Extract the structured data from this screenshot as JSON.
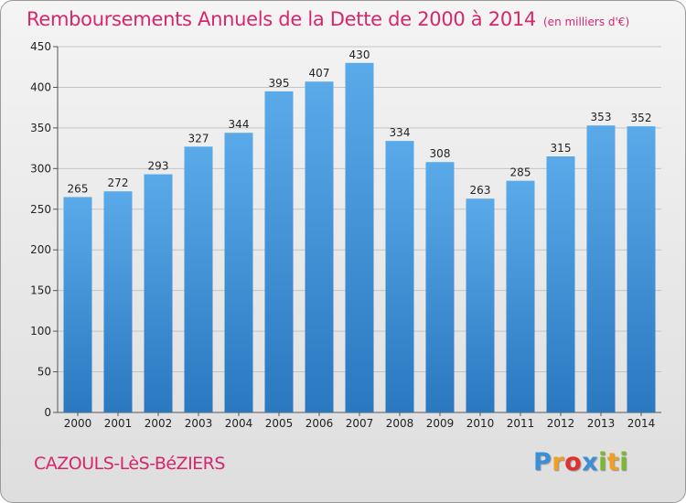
{
  "chart_data": {
    "type": "bar",
    "title": "Remboursements Annuels de la Dette de 2000 à 2014",
    "subtitle": "(en milliers d'€)",
    "categories": [
      "2000",
      "2001",
      "2002",
      "2003",
      "2004",
      "2005",
      "2006",
      "2007",
      "2008",
      "2009",
      "2010",
      "2011",
      "2012",
      "2013",
      "2014"
    ],
    "values": [
      265,
      272,
      293,
      327,
      344,
      395,
      407,
      430,
      334,
      308,
      263,
      285,
      315,
      353,
      352
    ],
    "xlabel": "",
    "ylabel": "",
    "ylim": [
      0,
      450
    ],
    "yticks": [
      0,
      50,
      100,
      150,
      200,
      250,
      300,
      350,
      400,
      450
    ],
    "grid": true
  },
  "commune": "CAZOULS-LèS-BéZIERS",
  "logo": {
    "letters": [
      "P",
      "r",
      "o",
      "x",
      "i",
      "t",
      "i"
    ],
    "colors": [
      "#3a8fd8",
      "#f0a020",
      "#e03030",
      "#3a8fd8",
      "#7ab82e",
      "#f0a020",
      "#7ab82e"
    ]
  },
  "colors": {
    "bar_top": "#5aaaea",
    "bar_bottom": "#2a78c0",
    "accent": "#d6266e"
  }
}
